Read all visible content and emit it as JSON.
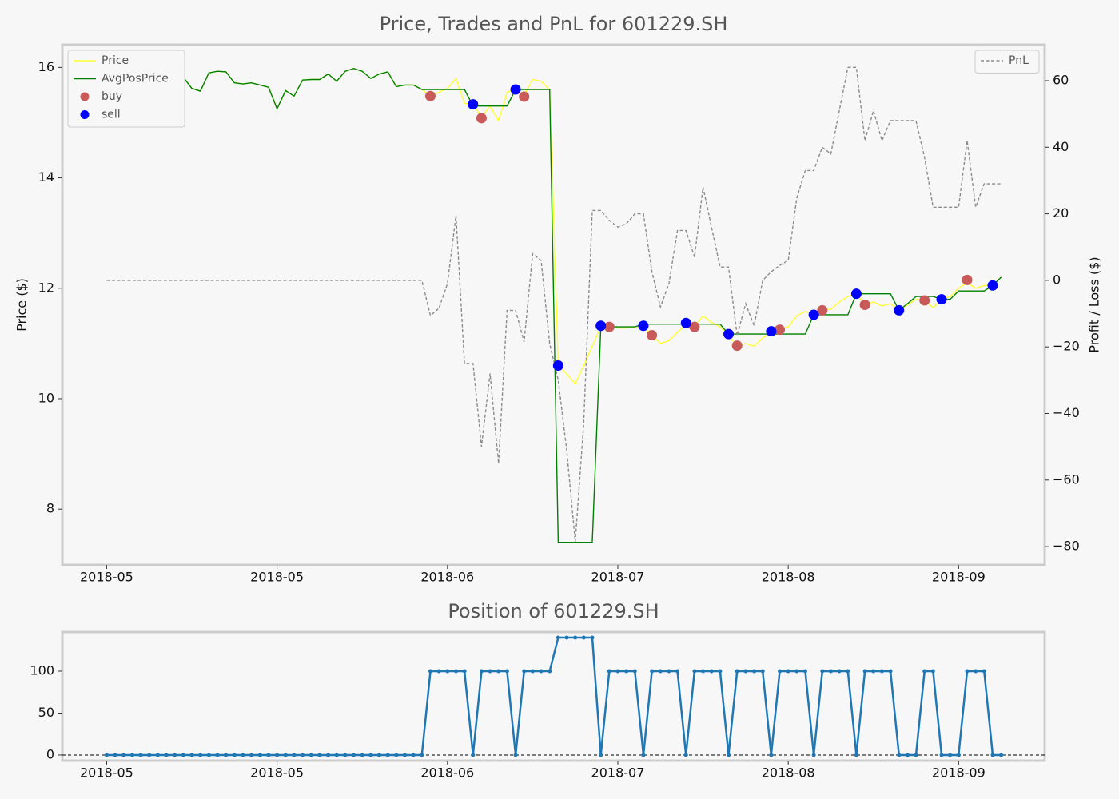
{
  "chart_data": [
    {
      "type": "line",
      "title": "Price, Trades and PnL for 601229.SH",
      "ylabel": "Price ($)",
      "y2label": "Profit / Loss ($)",
      "x": [
        0,
        1,
        2,
        3,
        4,
        5,
        6,
        7,
        8,
        9,
        10,
        11,
        12,
        13,
        14,
        15,
        16,
        17,
        18,
        19,
        20,
        21,
        22,
        23,
        24,
        25,
        26,
        27,
        28,
        29,
        30,
        31,
        32,
        33,
        34,
        35,
        36,
        37,
        38,
        39,
        40,
        41,
        42,
        43,
        44,
        45,
        46,
        47,
        48,
        49,
        50,
        51,
        52,
        53,
        54,
        55,
        56,
        57,
        58,
        59,
        60,
        61,
        62,
        63,
        64,
        65,
        66,
        67,
        68,
        69,
        70,
        71,
        72,
        73,
        74,
        75,
        76,
        77,
        78,
        79,
        80,
        81,
        82,
        83,
        84,
        85,
        86,
        87,
        88,
        89,
        90,
        91,
        92,
        93,
        94,
        95,
        96,
        97,
        98,
        99,
        100,
        101,
        102,
        103,
        104,
        105
      ],
      "xlim": [
        -5.2,
        110.1
      ],
      "xticks": [
        {
          "value": 0,
          "label": "2018-05"
        },
        {
          "value": 20,
          "label": "2018-05"
        },
        {
          "value": 40,
          "label": "2018-06"
        },
        {
          "value": 60,
          "label": "2018-07"
        },
        {
          "value": 80,
          "label": "2018-08"
        },
        {
          "value": 100,
          "label": "2018-09"
        }
      ],
      "ylim": [
        6.99,
        16.41
      ],
      "yticks": [
        8,
        10,
        12,
        14,
        16
      ],
      "y2lim": [
        -85.5,
        70.8
      ],
      "y2ticks": [
        {
          "value": -80,
          "label": "−80"
        },
        {
          "value": -60,
          "label": "−60"
        },
        {
          "value": -40,
          "label": "−40"
        },
        {
          "value": -20,
          "label": "−20"
        },
        0,
        20,
        40,
        60
      ],
      "legend": "upper left",
      "legend2": "upper right",
      "series": [
        {
          "name": "Price",
          "kind": "line",
          "color": "#ffff33",
          "values": [
            15.28,
            15.25,
            15.2,
            15.35,
            15.5,
            15.45,
            15.52,
            15.52,
            15.7,
            15.82,
            15.62,
            15.57,
            15.9,
            15.93,
            15.92,
            15.72,
            15.7,
            15.72,
            15.68,
            15.64,
            15.25,
            15.58,
            15.48,
            15.77,
            15.78,
            15.78,
            15.88,
            15.75,
            15.93,
            15.98,
            15.93,
            15.8,
            15.88,
            15.92,
            15.65,
            15.68,
            15.68,
            15.6,
            15.48,
            15.55,
            15.62,
            15.8,
            15.35,
            15.33,
            15.1,
            15.3,
            15.03,
            15.55,
            15.6,
            15.5,
            15.78,
            15.75,
            15.6,
            10.6,
            10.45,
            10.27,
            10.6,
            10.95,
            11.3,
            11.3,
            11.28,
            11.28,
            11.3,
            11.3,
            11.15,
            11.0,
            11.05,
            11.2,
            11.35,
            11.3,
            11.5,
            11.38,
            11.3,
            11.15,
            10.95,
            11.0,
            10.95,
            11.1,
            11.2,
            11.25,
            11.3,
            11.5,
            11.58,
            11.52,
            11.6,
            11.62,
            11.75,
            11.85,
            11.9,
            11.7,
            11.75,
            11.68,
            11.72,
            11.6,
            11.7,
            11.8,
            11.78,
            11.65,
            11.8,
            11.85,
            12.0,
            12.1,
            12.0,
            12.05,
            12.05,
            12.2
          ]
        },
        {
          "name": "AvgPosPrice",
          "kind": "line",
          "color": "#008000",
          "values": [
            15.28,
            15.25,
            15.2,
            15.35,
            15.5,
            15.45,
            15.52,
            15.52,
            15.7,
            15.82,
            15.62,
            15.57,
            15.9,
            15.93,
            15.92,
            15.72,
            15.7,
            15.72,
            15.68,
            15.64,
            15.25,
            15.58,
            15.48,
            15.77,
            15.78,
            15.78,
            15.88,
            15.75,
            15.93,
            15.98,
            15.93,
            15.8,
            15.88,
            15.92,
            15.65,
            15.68,
            15.68,
            15.6,
            15.6,
            15.6,
            15.6,
            15.6,
            15.6,
            15.3,
            15.3,
            15.3,
            15.3,
            15.3,
            15.6,
            15.6,
            15.6,
            15.6,
            15.6,
            7.4,
            7.4,
            7.4,
            7.4,
            7.4,
            11.3,
            11.3,
            11.3,
            11.3,
            11.3,
            11.35,
            11.35,
            11.35,
            11.35,
            11.35,
            11.35,
            11.35,
            11.35,
            11.35,
            11.35,
            11.17,
            11.17,
            11.17,
            11.17,
            11.17,
            11.17,
            11.17,
            11.17,
            11.17,
            11.17,
            11.52,
            11.52,
            11.52,
            11.52,
            11.52,
            11.9,
            11.9,
            11.9,
            11.9,
            11.9,
            11.6,
            11.72,
            11.85,
            11.85,
            11.85,
            11.8,
            11.8,
            11.95,
            11.95,
            11.95,
            11.95,
            12.05,
            12.2
          ]
        },
        {
          "name": "buy",
          "kind": "scatter",
          "color": "#c85a5a",
          "x": [
            38,
            44,
            49,
            53,
            59,
            64,
            69,
            74,
            79,
            84,
            89,
            96,
            101
          ],
          "values": [
            15.48,
            15.08,
            15.47,
            10.6,
            11.3,
            11.15,
            11.3,
            10.96,
            11.25,
            11.6,
            11.7,
            11.78,
            12.15
          ]
        },
        {
          "name": "sell",
          "kind": "scatter",
          "color": "#0000ff",
          "x": [
            43,
            48,
            53,
            58,
            63,
            68,
            73,
            78,
            83,
            88,
            93,
            98,
            104
          ],
          "values": [
            15.33,
            15.6,
            10.6,
            11.32,
            11.32,
            11.37,
            11.17,
            11.22,
            11.52,
            11.9,
            11.6,
            11.8,
            12.05
          ]
        },
        {
          "name": "PnL",
          "kind": "line",
          "style": "dashed",
          "axis": "y2",
          "color": "#8c8c8c",
          "values": [
            0,
            0,
            0,
            0,
            0,
            0,
            0,
            0,
            0,
            0,
            0,
            0,
            0,
            0,
            0,
            0,
            0,
            0,
            0,
            0,
            0,
            0,
            0,
            0,
            0,
            0,
            0,
            0,
            0,
            0,
            0,
            0,
            0,
            0,
            0,
            0,
            0,
            0,
            -10.6,
            -8.4,
            -1,
            19.5,
            -25,
            -25,
            -50,
            -28,
            -55,
            -9,
            -9,
            -18.5,
            8,
            6,
            -19,
            -30,
            -51,
            -78.5,
            -43,
            21,
            21,
            18,
            16,
            17,
            20,
            20,
            2.6,
            -8,
            -1,
            15,
            15,
            7,
            28,
            16,
            4,
            4,
            -16.6,
            -7,
            -13.7,
            0,
            2.6,
            4.5,
            6,
            24.7,
            33,
            33,
            40,
            38,
            51,
            64,
            64,
            42,
            51,
            42,
            48,
            48,
            48,
            48,
            37,
            22,
            22,
            22,
            22,
            42,
            22,
            29,
            29,
            29
          ]
        }
      ]
    },
    {
      "type": "line",
      "title": "Position of 601229.SH",
      "x": [
        0,
        1,
        2,
        3,
        4,
        5,
        6,
        7,
        8,
        9,
        10,
        11,
        12,
        13,
        14,
        15,
        16,
        17,
        18,
        19,
        20,
        21,
        22,
        23,
        24,
        25,
        26,
        27,
        28,
        29,
        30,
        31,
        32,
        33,
        34,
        35,
        36,
        37,
        38,
        39,
        40,
        41,
        42,
        43,
        44,
        45,
        46,
        47,
        48,
        49,
        50,
        51,
        52,
        53,
        54,
        55,
        56,
        57,
        58,
        59,
        60,
        61,
        62,
        63,
        64,
        65,
        66,
        67,
        68,
        69,
        70,
        71,
        72,
        73,
        74,
        75,
        76,
        77,
        78,
        79,
        80,
        81,
        82,
        83,
        84,
        85,
        86,
        87,
        88,
        89,
        90,
        91,
        92,
        93,
        94,
        95,
        96,
        97,
        98,
        99,
        100,
        101,
        102,
        103,
        104,
        105
      ],
      "xlim": [
        -5.2,
        110.1
      ],
      "xticks": [
        {
          "value": 0,
          "label": "2018-05"
        },
        {
          "value": 20,
          "label": "2018-05"
        },
        {
          "value": 40,
          "label": "2018-06"
        },
        {
          "value": 60,
          "label": "2018-07"
        },
        {
          "value": 80,
          "label": "2018-08"
        },
        {
          "value": 100,
          "label": "2018-09"
        }
      ],
      "ylim": [
        -6.7,
        146.7
      ],
      "yticks": [
        0,
        50,
        100
      ],
      "hline": 0,
      "series": [
        {
          "kind": "line",
          "marker": true,
          "color": "#1f77b4",
          "values": [
            0,
            0,
            0,
            0,
            0,
            0,
            0,
            0,
            0,
            0,
            0,
            0,
            0,
            0,
            0,
            0,
            0,
            0,
            0,
            0,
            0,
            0,
            0,
            0,
            0,
            0,
            0,
            0,
            0,
            0,
            0,
            0,
            0,
            0,
            0,
            0,
            0,
            0,
            100,
            100,
            100,
            100,
            100,
            0,
            100,
            100,
            100,
            100,
            0,
            100,
            100,
            100,
            100,
            140,
            140,
            140,
            140,
            140,
            0,
            100,
            100,
            100,
            100,
            0,
            100,
            100,
            100,
            100,
            0,
            100,
            100,
            100,
            100,
            0,
            100,
            100,
            100,
            100,
            0,
            100,
            100,
            100,
            100,
            0,
            100,
            100,
            100,
            100,
            0,
            100,
            100,
            100,
            100,
            0,
            0,
            0,
            100,
            100,
            0,
            0,
            0,
            100,
            100,
            100,
            0,
            0
          ]
        }
      ]
    }
  ]
}
